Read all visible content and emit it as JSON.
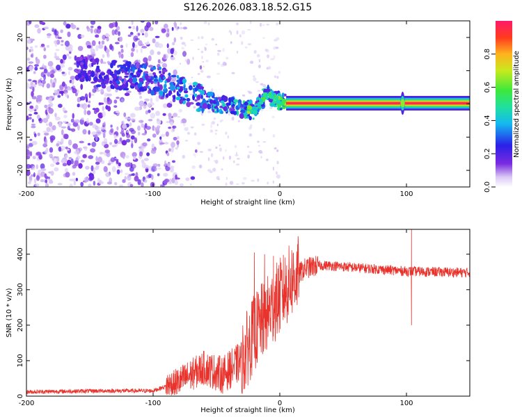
{
  "chart_data": [
    {
      "type": "heatmap",
      "title": "S126.2026.083.18.52.G15",
      "xlabel": "Height of straight line (km)",
      "ylabel": "Frequency (Hz)",
      "xlim": [
        -200,
        150
      ],
      "ylim": [
        -25,
        25
      ],
      "xticks": [
        -200,
        -100,
        0,
        100
      ],
      "xtick_labels": [
        "-200",
        "-100",
        "0",
        "100"
      ],
      "yticks": [
        -20,
        -10,
        0,
        10,
        20
      ],
      "ytick_labels": [
        "-20",
        "-10",
        "0",
        "10",
        "20"
      ],
      "ridge_frequency_hz": [
        {
          "x": -150,
          "f": 10
        },
        {
          "x": -140,
          "f": 9
        },
        {
          "x": -110,
          "f": 8
        },
        {
          "x": -95,
          "f": 7
        },
        {
          "x": -80,
          "f": 5
        },
        {
          "x": -65,
          "f": 2
        },
        {
          "x": -50,
          "f": 0
        },
        {
          "x": -35,
          "f": -1
        },
        {
          "x": -20,
          "f": -2
        },
        {
          "x": -10,
          "f": 3
        },
        {
          "x": 0,
          "f": 1
        },
        {
          "x": 10,
          "f": 0.2
        },
        {
          "x": 150,
          "f": 0.2
        }
      ],
      "colorbar": {
        "label": "Normalized spectral amplitude",
        "range": [
          0.0,
          1.0
        ],
        "ticks": [
          0.0,
          0.2,
          0.4,
          0.6,
          0.8
        ],
        "tick_labels": [
          "0.0",
          "0.2",
          "0.4",
          "0.6",
          "0.8"
        ]
      }
    },
    {
      "type": "line",
      "xlabel": "Height of straight line (km)",
      "ylabel": "SNR (10 * v/v)",
      "xlim": [
        -200,
        150
      ],
      "ylim": [
        0,
        470
      ],
      "xticks": [
        -200,
        -100,
        0,
        100
      ],
      "xtick_labels": [
        "-200",
        "-100",
        "0",
        "100"
      ],
      "yticks": [
        0,
        100,
        200,
        300,
        400
      ],
      "ytick_labels": [
        "0",
        "100",
        "200",
        "300",
        "400"
      ],
      "color": "#e8322b",
      "series_envelope": [
        {
          "x": -200,
          "y": 12
        },
        {
          "x": -140,
          "y": 15
        },
        {
          "x": -100,
          "y": 15
        },
        {
          "x": -80,
          "y": 40
        },
        {
          "x": -60,
          "y": 80
        },
        {
          "x": -45,
          "y": 60
        },
        {
          "x": -30,
          "y": 100
        },
        {
          "x": -20,
          "y": 180
        },
        {
          "x": -10,
          "y": 230
        },
        {
          "x": 0,
          "y": 280
        },
        {
          "x": 10,
          "y": 330
        },
        {
          "x": 20,
          "y": 360
        },
        {
          "x": 30,
          "y": 368
        },
        {
          "x": 40,
          "y": 368
        },
        {
          "x": 60,
          "y": 362
        },
        {
          "x": 100,
          "y": 352
        },
        {
          "x": 150,
          "y": 348
        }
      ],
      "spikes": [
        {
          "x": -20,
          "y": 405
        },
        {
          "x": -12,
          "y": 400
        },
        {
          "x": -5,
          "y": 395
        },
        {
          "x": 104,
          "y": 470
        },
        {
          "x": 104,
          "y": 200
        }
      ]
    }
  ]
}
